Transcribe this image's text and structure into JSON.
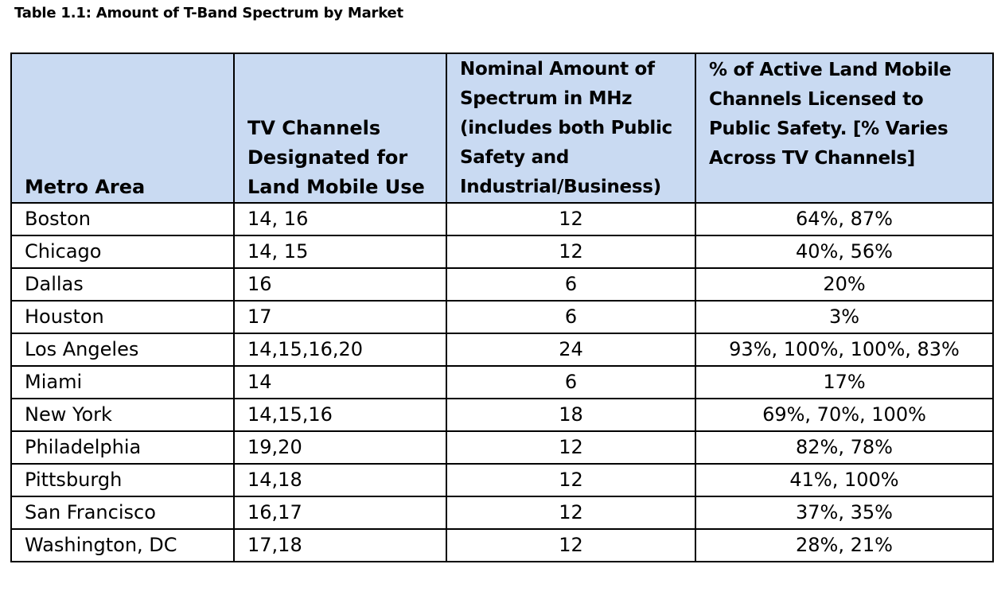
{
  "caption": "Table 1.1: Amount of T-Band Spectrum by Market",
  "headers": [
    "Metro Area",
    "TV Channels Designated for Land Mobile Use",
    "Nominal Amount of Spectrum in MHz (includes both Public Safety and Industrial/Business)",
    "% of Active Land Mobile Channels Licensed to Public Safety.  [% Varies Across TV Channels]"
  ],
  "rows": [
    [
      "Boston",
      "14, 16",
      "12",
      "64%, 87%"
    ],
    [
      "Chicago",
      "14, 15",
      "12",
      "40%, 56%"
    ],
    [
      "Dallas",
      "16",
      "6",
      "20%"
    ],
    [
      "Houston",
      "17",
      "6",
      "3%"
    ],
    [
      "Los Angeles",
      "14,15,16,20",
      "24",
      "93%, 100%, 100%, 83%"
    ],
    [
      "Miami",
      "14",
      "6",
      "17%"
    ],
    [
      "New York",
      "14,15,16",
      "18",
      "69%, 70%, 100%"
    ],
    [
      "Philadelphia",
      "19,20",
      "12",
      "82%, 78%"
    ],
    [
      "Pittsburgh",
      "14,18",
      "12",
      "41%, 100%"
    ],
    [
      "San Francisco",
      "16,17",
      "12",
      "37%, 35%"
    ],
    [
      "Washington, DC",
      "17,18",
      "12",
      "28%, 21%"
    ]
  ]
}
